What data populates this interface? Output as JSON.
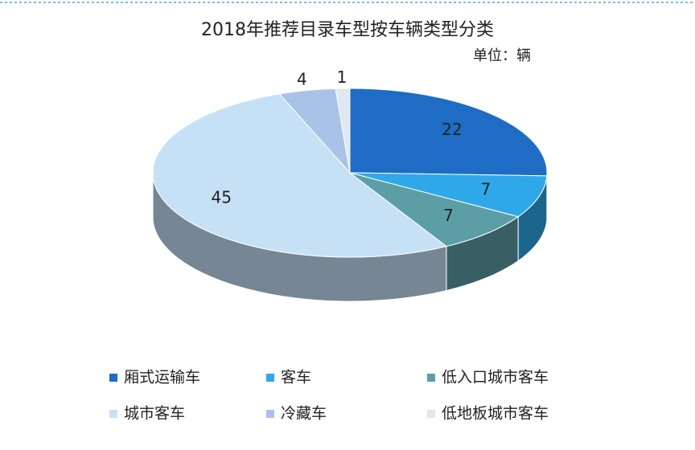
{
  "chart_data": {
    "type": "pie",
    "title": "2018年推荐目录车型按车辆类型分类",
    "subtitle": "单位：辆",
    "categories": [
      "厢式运输车",
      "客车",
      "低入口城市客车",
      "城市客车",
      "冷藏车",
      "低地板城市客车"
    ],
    "values": [
      22,
      7,
      7,
      45,
      4,
      1
    ],
    "colors": [
      "#1f6cc4",
      "#2ea8e8",
      "#5b9ea6",
      "#c6e0f6",
      "#a9c3e8",
      "#dde8f4"
    ]
  }
}
